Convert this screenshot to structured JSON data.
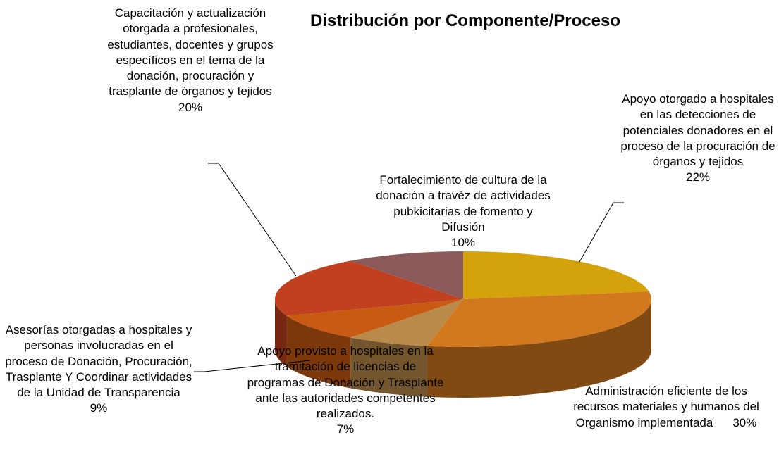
{
  "chart_data": {
    "type": "pie",
    "title": "Distribución por Componente/Proceso",
    "categories": [
      "Apoyo otorgado a hospitales en las detecciones de potenciales donadores en el proceso de la procuración de órganos y tejidos",
      "Administración eficiente de los recursos materiales y humanos del Organismo implementada",
      "Apoyo provisto a hospitales en la tramitación de licencias de programas de Donación y Trasplante ante las autoridades competentes realizados.",
      "Asesorías otorgadas a hospitales y personas involucradas en el proceso de Donación, Procuración, Trasplante Y Coordinar actividades de la Unidad de Transparencia",
      "Capacitación y actualización otorgada a profesionales, estudiantes, docentes y grupos específicos en el tema de la donación, procuración y trasplante de órganos y tejidos",
      "Fortalecimiento de cultura de la donación a travéz de actividades pubkicitarias de fomento y Difusión"
    ],
    "values": [
      22,
      30,
      7,
      9,
      20,
      10
    ],
    "value_labels": [
      "22%",
      "30%",
      "7%",
      "9%",
      "20%",
      "10%"
    ],
    "colors": [
      "#d4a20a",
      "#d2781e",
      "#b98a4a",
      "#c85a12",
      "#c0401f",
      "#8b5a5a"
    ]
  }
}
